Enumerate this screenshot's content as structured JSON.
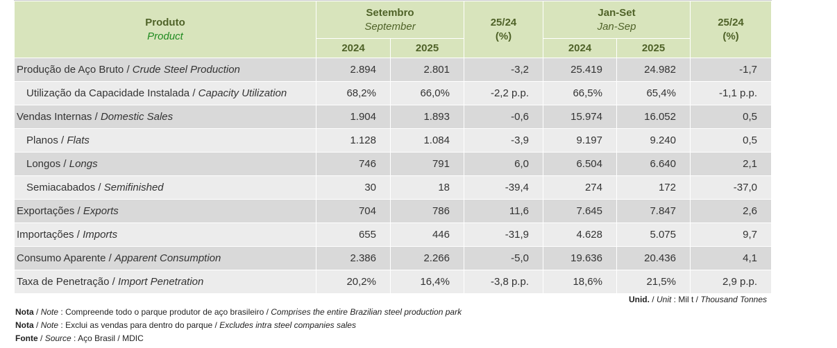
{
  "header": {
    "product": "Produto",
    "product_en": "Product",
    "month": "Setembro",
    "month_en": "September",
    "ytd": "Jan-Set",
    "ytd_en": "Jan-Sep",
    "var": "25/24",
    "var_unit": "(%)",
    "y1": "2024",
    "y2": "2025"
  },
  "rows": [
    {
      "label": "Produção de Aço Bruto",
      "label_en": "Crude Steel Production",
      "sub": false,
      "v": [
        "2.894",
        "2.801",
        "-3,2",
        "25.419",
        "24.982",
        "-1,7"
      ]
    },
    {
      "label": "Utilização da Capacidade Instalada",
      "label_en": "Capacity Utilization",
      "sub": true,
      "v": [
        "68,2%",
        "66,0%",
        "-2,2 p.p.",
        "66,5%",
        "65,4%",
        "-1,1 p.p."
      ]
    },
    {
      "label": "Vendas Internas",
      "label_en": "Domestic Sales",
      "sub": false,
      "v": [
        "1.904",
        "1.893",
        "-0,6",
        "15.974",
        "16.052",
        "0,5"
      ]
    },
    {
      "label": "Planos",
      "label_en": "Flats",
      "sub": true,
      "v": [
        "1.128",
        "1.084",
        "-3,9",
        "9.197",
        "9.240",
        "0,5"
      ]
    },
    {
      "label": "Longos",
      "label_en": "Longs",
      "sub": true,
      "v": [
        "746",
        "791",
        "6,0",
        "6.504",
        "6.640",
        "2,1"
      ]
    },
    {
      "label": "Semiacabados",
      "label_en": "Semifinished",
      "sub": true,
      "v": [
        "30",
        "18",
        "-39,4",
        "274",
        "172",
        "-37,0"
      ]
    },
    {
      "label": "Exportações",
      "label_en": "Exports",
      "sub": false,
      "v": [
        "704",
        "786",
        "11,6",
        "7.645",
        "7.847",
        "2,6"
      ]
    },
    {
      "label": "Importações",
      "label_en": "Imports",
      "sub": false,
      "v": [
        "655",
        "446",
        "-31,9",
        "4.628",
        "5.075",
        "9,7"
      ]
    },
    {
      "label": "Consumo Aparente",
      "label_en": "Apparent Consumption",
      "sub": false,
      "v": [
        "2.386",
        "2.266",
        "-5,0",
        "19.636",
        "20.436",
        "4,1"
      ]
    },
    {
      "label": "Taxa de Penetração",
      "label_en": "Import Penetration",
      "sub": false,
      "v": [
        "20,2%",
        "16,4%",
        "-3,8 p.p.",
        "18,6%",
        "21,5%",
        "2,9 p.p."
      ]
    }
  ],
  "unit": {
    "label": "Unid.",
    "label_en": "Unit",
    "value": "Mil t",
    "value_en": "Thousand Tonnes"
  },
  "notes": [
    {
      "label": "Nota",
      "label_en": "Note",
      "text": "Compreende todo o parque produtor de aço brasileiro",
      "text_en": "Comprises the entire Brazilian steel production park"
    },
    {
      "label": "Nota",
      "label_en": "Note",
      "text": "Exclui as vendas para dentro do parque",
      "text_en": "Excludes intra steel companies sales"
    },
    {
      "label": "Fonte",
      "label_en": "Source",
      "text": "Aço Brasil / MDIC",
      "text_en": ""
    }
  ],
  "colors": {
    "header_bg": "#d8e4bc",
    "header_text": "#4f6228",
    "row_dark": "#d9d9d9",
    "row_light": "#ececec"
  }
}
